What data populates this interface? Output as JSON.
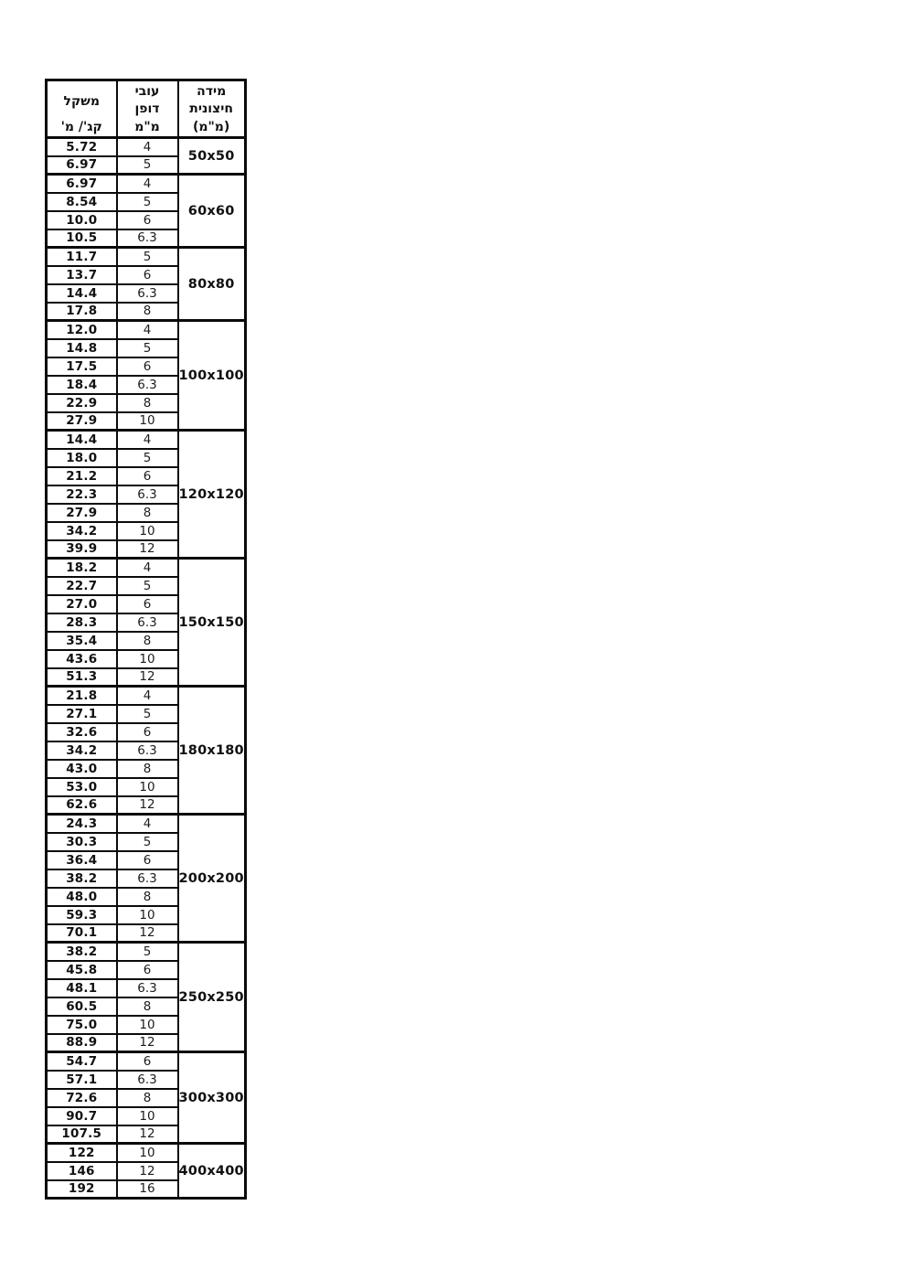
{
  "table": {
    "headers": {
      "weight": {
        "line1": "משקל",
        "line2": "קג'/ מ'"
      },
      "thickness": {
        "line1": "עובי",
        "line2": "דופן",
        "line3": "מ\"מ"
      },
      "dimension": {
        "line1": "מידה",
        "line2": "חיצונית",
        "line3": "(מ\"מ)"
      }
    },
    "groups": [
      {
        "dimension": "50x50",
        "rows": [
          {
            "weight": "5.72",
            "thickness": "4"
          },
          {
            "weight": "6.97",
            "thickness": "5"
          }
        ]
      },
      {
        "dimension": "60x60",
        "rows": [
          {
            "weight": "6.97",
            "thickness": "4"
          },
          {
            "weight": "8.54",
            "thickness": "5"
          },
          {
            "weight": "10.0",
            "thickness": "6"
          },
          {
            "weight": "10.5",
            "thickness": "6.3"
          }
        ]
      },
      {
        "dimension": "80x80",
        "rows": [
          {
            "weight": "11.7",
            "thickness": "5"
          },
          {
            "weight": "13.7",
            "thickness": "6"
          },
          {
            "weight": "14.4",
            "thickness": "6.3"
          },
          {
            "weight": "17.8",
            "thickness": "8"
          }
        ]
      },
      {
        "dimension": "100x100",
        "rows": [
          {
            "weight": "12.0",
            "thickness": "4"
          },
          {
            "weight": "14.8",
            "thickness": "5"
          },
          {
            "weight": "17.5",
            "thickness": "6"
          },
          {
            "weight": "18.4",
            "thickness": "6.3"
          },
          {
            "weight": "22.9",
            "thickness": "8"
          },
          {
            "weight": "27.9",
            "thickness": "10"
          }
        ]
      },
      {
        "dimension": "120x120",
        "rows": [
          {
            "weight": "14.4",
            "thickness": "4"
          },
          {
            "weight": "18.0",
            "thickness": "5"
          },
          {
            "weight": "21.2",
            "thickness": "6"
          },
          {
            "weight": "22.3",
            "thickness": "6.3"
          },
          {
            "weight": "27.9",
            "thickness": "8"
          },
          {
            "weight": "34.2",
            "thickness": "10"
          },
          {
            "weight": "39.9",
            "thickness": "12"
          }
        ]
      },
      {
        "dimension": "150x150",
        "rows": [
          {
            "weight": "18.2",
            "thickness": "4"
          },
          {
            "weight": "22.7",
            "thickness": "5"
          },
          {
            "weight": "27.0",
            "thickness": "6"
          },
          {
            "weight": "28.3",
            "thickness": "6.3"
          },
          {
            "weight": "35.4",
            "thickness": "8"
          },
          {
            "weight": "43.6",
            "thickness": "10"
          },
          {
            "weight": "51.3",
            "thickness": "12"
          }
        ]
      },
      {
        "dimension": "180x180",
        "rows": [
          {
            "weight": "21.8",
            "thickness": "4"
          },
          {
            "weight": "27.1",
            "thickness": "5"
          },
          {
            "weight": "32.6",
            "thickness": "6"
          },
          {
            "weight": "34.2",
            "thickness": "6.3"
          },
          {
            "weight": "43.0",
            "thickness": "8"
          },
          {
            "weight": "53.0",
            "thickness": "10"
          },
          {
            "weight": "62.6",
            "thickness": "12"
          }
        ]
      },
      {
        "dimension": "200x200",
        "rows": [
          {
            "weight": "24.3",
            "thickness": "4"
          },
          {
            "weight": "30.3",
            "thickness": "5"
          },
          {
            "weight": "36.4",
            "thickness": "6"
          },
          {
            "weight": "38.2",
            "thickness": "6.3"
          },
          {
            "weight": "48.0",
            "thickness": "8"
          },
          {
            "weight": "59.3",
            "thickness": "10"
          },
          {
            "weight": "70.1",
            "thickness": "12"
          }
        ]
      },
      {
        "dimension": "250x250",
        "rows": [
          {
            "weight": "38.2",
            "thickness": "5"
          },
          {
            "weight": "45.8",
            "thickness": "6"
          },
          {
            "weight": "48.1",
            "thickness": "6.3"
          },
          {
            "weight": "60.5",
            "thickness": "8"
          },
          {
            "weight": "75.0",
            "thickness": "10"
          },
          {
            "weight": "88.9",
            "thickness": "12"
          }
        ]
      },
      {
        "dimension": "300x300",
        "rows": [
          {
            "weight": "54.7",
            "thickness": "6"
          },
          {
            "weight": "57.1",
            "thickness": "6.3"
          },
          {
            "weight": "72.6",
            "thickness": "8"
          },
          {
            "weight": "90.7",
            "thickness": "10"
          },
          {
            "weight": "107.5",
            "thickness": "12"
          }
        ]
      },
      {
        "dimension": "400x400",
        "rows": [
          {
            "weight": "122",
            "thickness": "10"
          },
          {
            "weight": "146",
            "thickness": "12"
          },
          {
            "weight": "192",
            "thickness": "16"
          }
        ]
      }
    ]
  }
}
